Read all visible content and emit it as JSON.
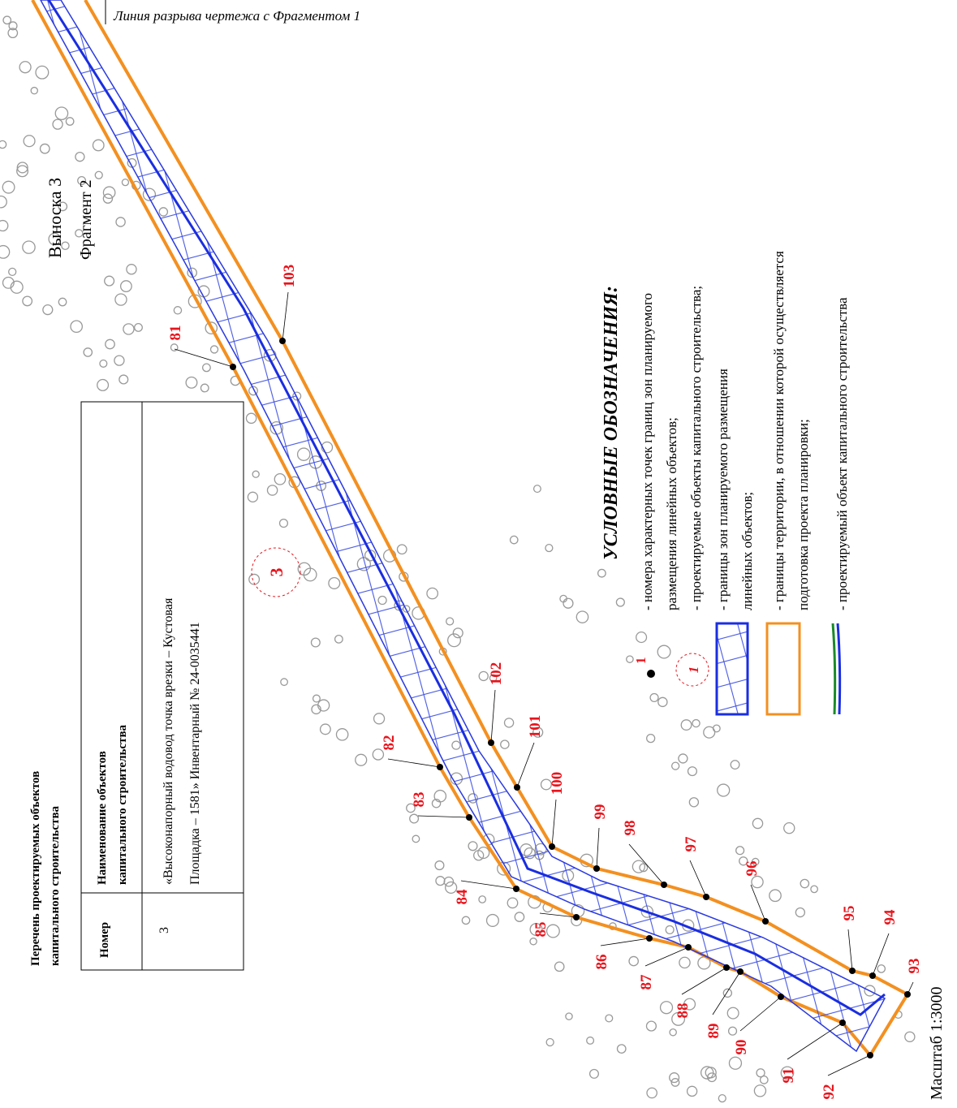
{
  "header_note": "Линия разрыва чертежа с Фрагментом 1",
  "callout": {
    "label": "Выноска 3",
    "fragment": "Фрагмент 2"
  },
  "table": {
    "title": [
      "Перечень проектируемых объектов",
      "капитального строительства"
    ],
    "headers": [
      "Номер",
      [
        "Наименование объектов",
        "капитального строительства"
      ]
    ],
    "rows": [
      [
        "3",
        [
          "«Высоконапорный водовод точка врезки – Кустовая",
          "Площадка – 1581» Инвентарный № 24-0035441"
        ]
      ]
    ]
  },
  "object_marker": "3",
  "points": [
    "81",
    "82",
    "83",
    "84",
    "85",
    "86",
    "87",
    "88",
    "89",
    "90",
    "91",
    "92",
    "93",
    "94",
    "95",
    "96",
    "97",
    "98",
    "99",
    "100",
    "101",
    "102",
    "103"
  ],
  "legend": {
    "title": "УСЛОВНЫЕ ОБОЗНАЧЕНИЯ:",
    "items": [
      {
        "symbol": "1",
        "text": [
          "- номера характерных точек границ зон планируемого",
          "размещения линейных объектов;"
        ]
      },
      {
        "symbol": "1",
        "text": [
          "- проектируемые объекты капитального строительства;"
        ]
      },
      {
        "text": [
          "- границы зон планируемого размещения",
          "линейных объектов;"
        ]
      },
      {
        "text": [
          "- границы территории, в отношении которой осуществляется",
          "подготовка проекта планировки;"
        ]
      },
      {
        "text": [
          "- проектируемый объект капитального строительства"
        ]
      }
    ]
  },
  "scale": "Масштаб 1:3000"
}
